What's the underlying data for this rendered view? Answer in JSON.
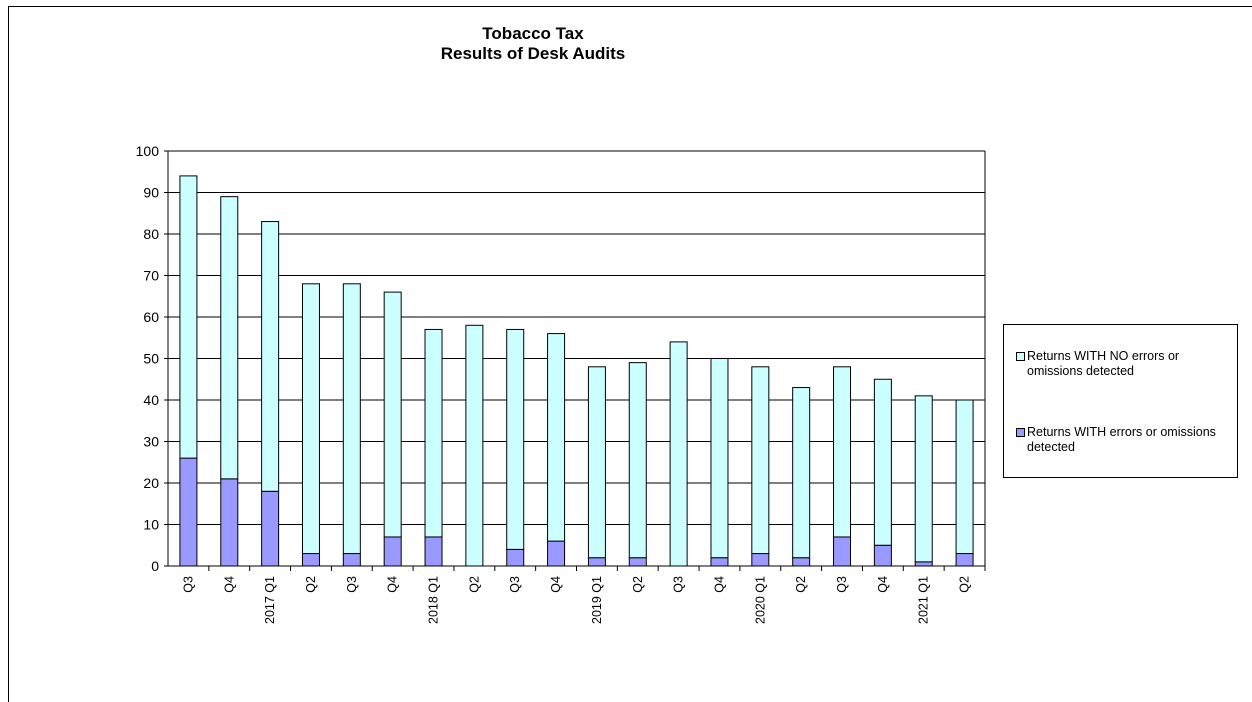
{
  "chart_data": {
    "type": "bar",
    "stacked": true,
    "title": "Tobacco Tax",
    "subtitle": "Results of Desk Audits",
    "xlabel": "",
    "ylabel": "",
    "ylim": [
      0,
      100
    ],
    "yticks": [
      0,
      10,
      20,
      30,
      40,
      50,
      60,
      70,
      80,
      90,
      100
    ],
    "grid": true,
    "legend_position": "right",
    "categories": [
      "Q3",
      "Q4",
      "2017 Q1",
      "Q2",
      "Q3",
      "Q4",
      "2018 Q1",
      "Q2",
      "Q3",
      "Q4",
      "2019 Q1",
      "Q2",
      "Q3",
      "Q4",
      "2020 Q1",
      "Q2",
      "Q3",
      "Q4",
      "2021 Q1",
      "Q2"
    ],
    "series": [
      {
        "name": "Returns WITH errors or omissions detected",
        "color": "#9999ff",
        "values": [
          26,
          21,
          18,
          3,
          3,
          7,
          7,
          0,
          4,
          6,
          2,
          2,
          0,
          2,
          3,
          2,
          7,
          5,
          1,
          3
        ]
      },
      {
        "name": "Returns WITH NO errors or omissions detected",
        "color": "#ccffff",
        "values": [
          68,
          68,
          65,
          65,
          65,
          59,
          50,
          58,
          53,
          50,
          46,
          47,
          54,
          48,
          45,
          41,
          41,
          40,
          40,
          37
        ]
      }
    ]
  }
}
